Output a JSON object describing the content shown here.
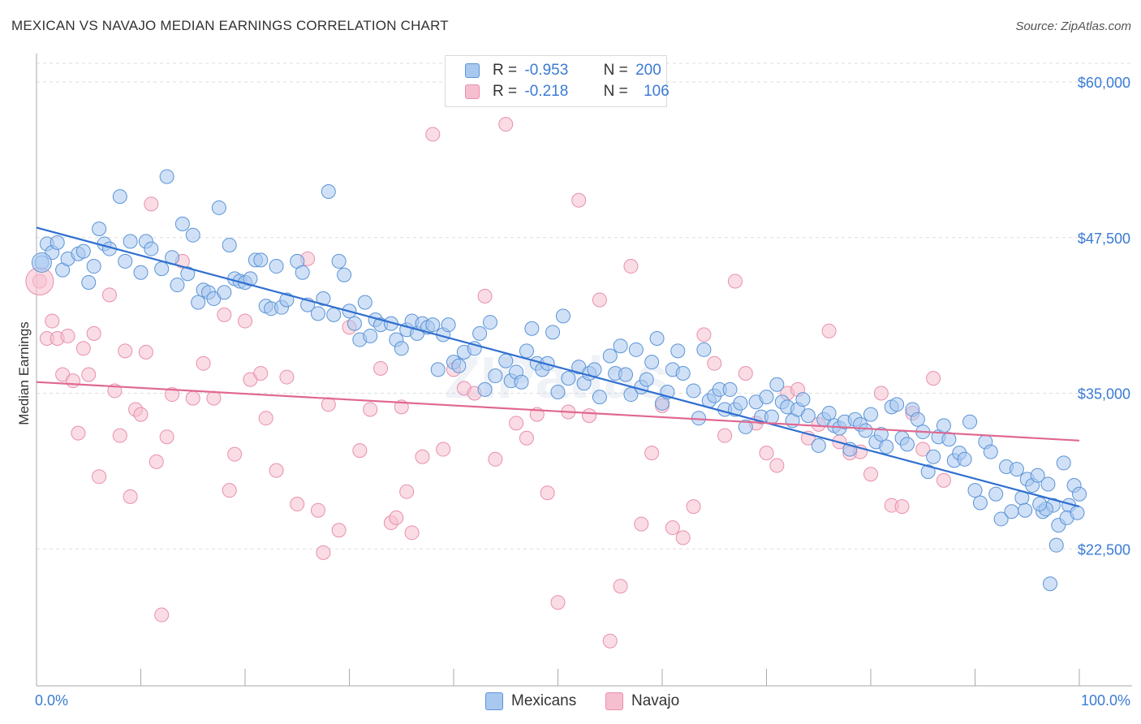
{
  "header": {
    "title": "MEXICAN VS NAVAJO MEDIAN EARNINGS CORRELATION CHART",
    "source": "Source: ZipAtlas.com"
  },
  "colors": {
    "blue_fill": "#a9c8f0",
    "blue_stroke": "#5b94d6",
    "blue_line": "#2f6fd0",
    "pink_fill": "#f6bfd0",
    "pink_stroke": "#e890ac",
    "pink_line": "#e06890",
    "axis_text": "#3a7bd5",
    "grid": "#dddddd"
  },
  "legend": {
    "r_label": "R =",
    "n_label": "N =",
    "series": [
      {
        "r": "-0.953",
        "n": "200"
      },
      {
        "r": "-0.218",
        "n": "106"
      }
    ]
  },
  "chart_data": {
    "type": "scatter",
    "title": "MEXICAN VS NAVAJO MEDIAN EARNINGS CORRELATION CHART",
    "xlabel": "",
    "ylabel": "Median Earnings",
    "xlim": [
      0,
      100
    ],
    "ylim": [
      11500,
      61500
    ],
    "x_tick_labels": [
      "0.0%",
      "100.0%"
    ],
    "y_ticks": [
      22500,
      35000,
      47500,
      60000
    ],
    "y_tick_labels": [
      "$22,500",
      "$35,000",
      "$47,500",
      "$60,000"
    ],
    "watermark": "ZIPatlas",
    "series": [
      {
        "name": "Mexicans",
        "r": -0.953,
        "n": 200,
        "trend": {
          "x": [
            0,
            100
          ],
          "y": [
            48300,
            25900
          ]
        },
        "points": [
          [
            0.5,
            45500
          ],
          [
            1,
            47000
          ],
          [
            1.5,
            46300
          ],
          [
            2,
            47100
          ],
          [
            2.5,
            44900
          ],
          [
            3,
            45800
          ],
          [
            4,
            46200
          ],
          [
            4.5,
            46400
          ],
          [
            5,
            43900
          ],
          [
            5.5,
            45200
          ],
          [
            6,
            48200
          ],
          [
            6.5,
            47000
          ],
          [
            7,
            46600
          ],
          [
            8,
            50800
          ],
          [
            8.5,
            45600
          ],
          [
            9,
            47200
          ],
          [
            10,
            44700
          ],
          [
            10.5,
            47200
          ],
          [
            11,
            46600
          ],
          [
            12,
            45000
          ],
          [
            12.5,
            52400
          ],
          [
            13,
            45900
          ],
          [
            13.5,
            43700
          ],
          [
            14,
            48600
          ],
          [
            14.5,
            44600
          ],
          [
            15,
            47700
          ],
          [
            15.5,
            42300
          ],
          [
            16,
            43300
          ],
          [
            16.5,
            43100
          ],
          [
            17,
            42600
          ],
          [
            17.5,
            49900
          ],
          [
            18,
            43100
          ],
          [
            18.5,
            46900
          ],
          [
            19,
            44200
          ],
          [
            19.5,
            44000
          ],
          [
            20,
            43900
          ],
          [
            20.5,
            44200
          ],
          [
            21,
            45700
          ],
          [
            21.5,
            45700
          ],
          [
            22,
            42000
          ],
          [
            22.5,
            41800
          ],
          [
            23,
            45200
          ],
          [
            23.5,
            41900
          ],
          [
            24,
            42500
          ],
          [
            25,
            45600
          ],
          [
            25.5,
            44700
          ],
          [
            26,
            42100
          ],
          [
            27,
            41400
          ],
          [
            27.5,
            42600
          ],
          [
            28,
            51200
          ],
          [
            28.5,
            41300
          ],
          [
            29,
            45600
          ],
          [
            29.5,
            44500
          ],
          [
            30,
            41600
          ],
          [
            30.5,
            40600
          ],
          [
            31,
            39300
          ],
          [
            31.5,
            42300
          ],
          [
            32,
            39600
          ],
          [
            32.5,
            40900
          ],
          [
            33,
            40500
          ],
          [
            34,
            40600
          ],
          [
            34.5,
            39300
          ],
          [
            35,
            38600
          ],
          [
            35.5,
            40100
          ],
          [
            36,
            40800
          ],
          [
            36.5,
            39800
          ],
          [
            37,
            40600
          ],
          [
            37.5,
            40300
          ],
          [
            38,
            40500
          ],
          [
            38.5,
            36900
          ],
          [
            39,
            39700
          ],
          [
            39.5,
            40500
          ],
          [
            40,
            37500
          ],
          [
            40.5,
            37200
          ],
          [
            41,
            38300
          ],
          [
            42,
            38600
          ],
          [
            42.5,
            39800
          ],
          [
            43,
            35300
          ],
          [
            43.5,
            40700
          ],
          [
            44,
            36400
          ],
          [
            45,
            37600
          ],
          [
            45.5,
            36000
          ],
          [
            46,
            36700
          ],
          [
            46.5,
            35900
          ],
          [
            47,
            38400
          ],
          [
            47.5,
            40200
          ],
          [
            48,
            37400
          ],
          [
            48.5,
            36900
          ],
          [
            49,
            37400
          ],
          [
            49.5,
            39900
          ],
          [
            50,
            35100
          ],
          [
            50.5,
            41200
          ],
          [
            51,
            36200
          ],
          [
            52,
            37100
          ],
          [
            52.5,
            35800
          ],
          [
            53,
            36600
          ],
          [
            53.5,
            36900
          ],
          [
            54,
            34700
          ],
          [
            55,
            38000
          ],
          [
            55.5,
            36600
          ],
          [
            56,
            38800
          ],
          [
            56.5,
            36500
          ],
          [
            57,
            34900
          ],
          [
            57.5,
            38500
          ],
          [
            58,
            35500
          ],
          [
            58.5,
            36100
          ],
          [
            59,
            37500
          ],
          [
            59.5,
            39400
          ],
          [
            60,
            34200
          ],
          [
            60.5,
            35100
          ],
          [
            61,
            36900
          ],
          [
            61.5,
            38400
          ],
          [
            62,
            36600
          ],
          [
            63,
            35200
          ],
          [
            63.5,
            33000
          ],
          [
            64,
            38500
          ],
          [
            64.5,
            34400
          ],
          [
            65,
            34800
          ],
          [
            65.5,
            35300
          ],
          [
            66,
            33700
          ],
          [
            66.5,
            35300
          ],
          [
            67,
            33700
          ],
          [
            67.5,
            34200
          ],
          [
            68,
            32300
          ],
          [
            69,
            34300
          ],
          [
            69.5,
            33100
          ],
          [
            70,
            34700
          ],
          [
            70.5,
            33100
          ],
          [
            71,
            35700
          ],
          [
            71.5,
            34300
          ],
          [
            72,
            33900
          ],
          [
            72.5,
            32800
          ],
          [
            73,
            33700
          ],
          [
            73.5,
            34500
          ],
          [
            74,
            33200
          ],
          [
            75,
            30800
          ],
          [
            75.5,
            32900
          ],
          [
            76,
            33400
          ],
          [
            76.5,
            32400
          ],
          [
            77,
            32200
          ],
          [
            77.5,
            32700
          ],
          [
            78,
            30500
          ],
          [
            78.5,
            32900
          ],
          [
            79,
            32500
          ],
          [
            79.5,
            32000
          ],
          [
            80,
            33300
          ],
          [
            80.5,
            31100
          ],
          [
            81,
            31700
          ],
          [
            81.5,
            30700
          ],
          [
            82,
            33900
          ],
          [
            82.5,
            34100
          ],
          [
            83,
            31400
          ],
          [
            83.5,
            30900
          ],
          [
            84,
            33700
          ],
          [
            84.5,
            32900
          ],
          [
            85,
            31900
          ],
          [
            85.5,
            28700
          ],
          [
            86,
            29900
          ],
          [
            86.5,
            31500
          ],
          [
            87,
            32400
          ],
          [
            87.5,
            31300
          ],
          [
            88,
            29600
          ],
          [
            88.5,
            30200
          ],
          [
            89,
            29700
          ],
          [
            89.5,
            32700
          ],
          [
            90,
            27200
          ],
          [
            90.5,
            26200
          ],
          [
            91,
            31100
          ],
          [
            91.5,
            30300
          ],
          [
            92,
            26900
          ],
          [
            92.5,
            24900
          ],
          [
            93,
            29100
          ],
          [
            93.5,
            25500
          ],
          [
            94,
            28900
          ],
          [
            94.5,
            26600
          ],
          [
            95,
            28100
          ],
          [
            95.5,
            27600
          ],
          [
            96,
            28400
          ],
          [
            96.5,
            25500
          ],
          [
            97,
            27700
          ],
          [
            97.5,
            26000
          ],
          [
            98,
            24400
          ],
          [
            98.5,
            29400
          ],
          [
            99,
            26000
          ],
          [
            99.5,
            27600
          ],
          [
            100,
            26900
          ],
          [
            97.2,
            19700
          ],
          [
            97.8,
            22800
          ],
          [
            96.8,
            25700
          ],
          [
            98.8,
            25000
          ],
          [
            99.8,
            25400
          ],
          [
            94.8,
            25600
          ],
          [
            96.2,
            26100
          ]
        ]
      },
      {
        "name": "Navajo",
        "r": -0.218,
        "n": 106,
        "trend": {
          "x": [
            0,
            100
          ],
          "y": [
            35900,
            31200
          ]
        },
        "points": [
          [
            0.3,
            44000
          ],
          [
            1,
            39400
          ],
          [
            1.5,
            40800
          ],
          [
            2,
            39400
          ],
          [
            2.5,
            36500
          ],
          [
            3,
            39600
          ],
          [
            3.5,
            36000
          ],
          [
            4,
            31800
          ],
          [
            4.5,
            38600
          ],
          [
            5,
            36500
          ],
          [
            5.5,
            39800
          ],
          [
            6,
            28300
          ],
          [
            7,
            42900
          ],
          [
            7.5,
            35200
          ],
          [
            8,
            31600
          ],
          [
            8.5,
            38400
          ],
          [
            9,
            26700
          ],
          [
            9.5,
            33700
          ],
          [
            10,
            33300
          ],
          [
            10.5,
            38300
          ],
          [
            11,
            50200
          ],
          [
            11.5,
            29500
          ],
          [
            12,
            17200
          ],
          [
            12.5,
            31500
          ],
          [
            13,
            34900
          ],
          [
            14,
            45600
          ],
          [
            15,
            34600
          ],
          [
            16,
            37400
          ],
          [
            17,
            34600
          ],
          [
            18,
            41300
          ],
          [
            18.5,
            27200
          ],
          [
            19,
            30100
          ],
          [
            20,
            40800
          ],
          [
            20.5,
            36100
          ],
          [
            21.5,
            36600
          ],
          [
            22,
            33000
          ],
          [
            23,
            28800
          ],
          [
            24,
            36300
          ],
          [
            25,
            26100
          ],
          [
            26,
            45800
          ],
          [
            27,
            25600
          ],
          [
            27.5,
            22200
          ],
          [
            28,
            34100
          ],
          [
            29,
            24000
          ],
          [
            30,
            40300
          ],
          [
            31,
            30400
          ],
          [
            32,
            33700
          ],
          [
            33,
            37000
          ],
          [
            34,
            24600
          ],
          [
            34.5,
            25000
          ],
          [
            35,
            33900
          ],
          [
            35.5,
            27100
          ],
          [
            36,
            23800
          ],
          [
            37,
            29900
          ],
          [
            38,
            55800
          ],
          [
            39,
            30500
          ],
          [
            40,
            36900
          ],
          [
            41,
            35400
          ],
          [
            42,
            35000
          ],
          [
            43,
            42800
          ],
          [
            44,
            29700
          ],
          [
            45,
            56600
          ],
          [
            46,
            32600
          ],
          [
            47,
            31400
          ],
          [
            48,
            33300
          ],
          [
            49,
            27000
          ],
          [
            50,
            18200
          ],
          [
            51,
            33500
          ],
          [
            52,
            50500
          ],
          [
            53,
            33200
          ],
          [
            54,
            42500
          ],
          [
            55,
            15100
          ],
          [
            56,
            19500
          ],
          [
            57,
            45200
          ],
          [
            58,
            24500
          ],
          [
            59,
            30200
          ],
          [
            60,
            34000
          ],
          [
            61,
            24200
          ],
          [
            62,
            23400
          ],
          [
            63,
            25900
          ],
          [
            64,
            39700
          ],
          [
            65,
            37400
          ],
          [
            66,
            31600
          ],
          [
            67,
            44000
          ],
          [
            68,
            36600
          ],
          [
            69,
            32600
          ],
          [
            70,
            30200
          ],
          [
            71,
            29200
          ],
          [
            72,
            35000
          ],
          [
            73,
            35300
          ],
          [
            74,
            31400
          ],
          [
            75,
            32500
          ],
          [
            76,
            40000
          ],
          [
            77,
            31100
          ],
          [
            78,
            30200
          ],
          [
            79,
            30300
          ],
          [
            80,
            28500
          ],
          [
            81,
            35000
          ],
          [
            82,
            26000
          ],
          [
            83,
            25900
          ],
          [
            84,
            33400
          ],
          [
            85,
            30500
          ],
          [
            86,
            36200
          ],
          [
            87,
            28000
          ]
        ]
      }
    ]
  }
}
